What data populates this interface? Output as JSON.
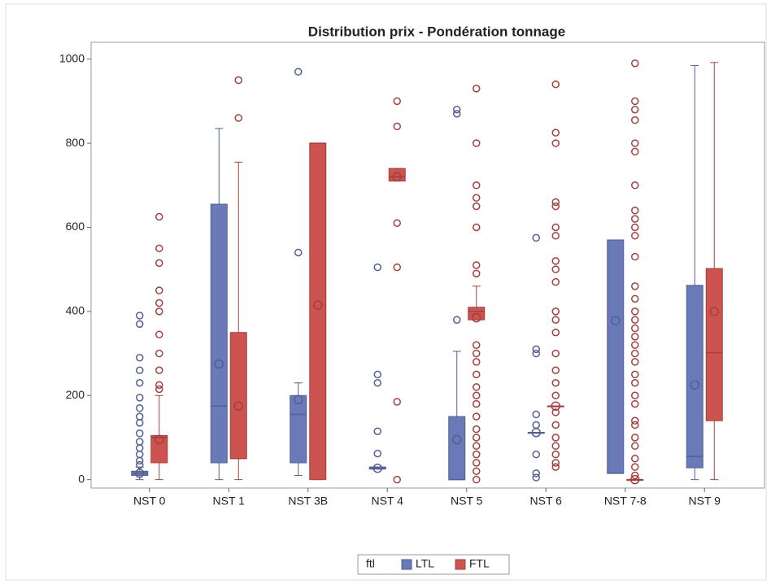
{
  "chart_data": {
    "type": "box",
    "title": "Distribution prix - Pondération tonnage",
    "categories": [
      "NST 0",
      "NST 1",
      "NST 3B",
      "NST 4",
      "NST 5",
      "NST 6",
      "NST 7-8",
      "NST 9"
    ],
    "ylim": [
      -20,
      1040
    ],
    "yticks": [
      0,
      200,
      400,
      600,
      800,
      1000
    ],
    "legend_title": "ftl",
    "legend_position": "bottom",
    "series": [
      {
        "name": "LTL",
        "color": "#6a7ab8",
        "stats": [
          {
            "min": 0,
            "q1": 10,
            "median": 15,
            "q3": 20,
            "max": 30,
            "mean": 15,
            "outliers": [
              35,
              45,
              60,
              75,
              90,
              110,
              135,
              150,
              170,
              195,
              230,
              260,
              290,
              370,
              390
            ]
          },
          {
            "min": 0,
            "q1": 40,
            "median": 175,
            "q3": 655,
            "max": 835,
            "mean": 275,
            "outliers": []
          },
          {
            "min": 10,
            "q1": 40,
            "median": 155,
            "q3": 200,
            "max": 230,
            "mean": 190,
            "outliers": [
              540,
              970
            ]
          },
          {
            "min": 25,
            "q1": 25,
            "median": 27,
            "q3": 30,
            "max": 30,
            "mean": 27,
            "outliers": [
              62,
              115,
              230,
              250,
              505
            ]
          },
          {
            "min": 0,
            "q1": 0,
            "median": 0,
            "q3": 150,
            "max": 305,
            "mean": 95,
            "outliers": [
              380,
              870,
              880
            ]
          },
          {
            "min": 112,
            "q1": 112,
            "median": 112,
            "q3": 112,
            "max": 112,
            "mean": 112,
            "outliers": [
              5,
              15,
              60,
              130,
              155,
              300,
              310,
              575
            ]
          },
          {
            "min": 15,
            "q1": 15,
            "median": 15,
            "q3": 570,
            "max": 570,
            "mean": 378,
            "outliers": []
          },
          {
            "min": 0,
            "q1": 28,
            "median": 55,
            "q3": 462,
            "max": 985,
            "mean": 225,
            "outliers": []
          }
        ]
      },
      {
        "name": "FTL",
        "color": "#cc5350",
        "stats": [
          {
            "min": 0,
            "q1": 40,
            "median": 100,
            "q3": 105,
            "max": 200,
            "mean": 95,
            "outliers": [
              215,
              225,
              260,
              300,
              345,
              400,
              420,
              450,
              515,
              550,
              625
            ]
          },
          {
            "min": 0,
            "q1": 50,
            "median": 50,
            "q3": 350,
            "max": 755,
            "mean": 175,
            "outliers": [
              860,
              950
            ]
          },
          {
            "min": 0,
            "q1": 0,
            "median": 800,
            "q3": 800,
            "max": 800,
            "mean": 415,
            "outliers": []
          },
          {
            "min": 710,
            "q1": 710,
            "median": 720,
            "q3": 740,
            "max": 740,
            "mean": 720,
            "outliers": [
              0,
              185,
              505,
              610,
              840,
              900
            ]
          },
          {
            "min": 380,
            "q1": 380,
            "median": 400,
            "q3": 410,
            "max": 460,
            "mean": 385,
            "outliers": [
              0,
              20,
              40,
              60,
              80,
              100,
              120,
              150,
              180,
              200,
              220,
              250,
              280,
              300,
              320,
              490,
              510,
              600,
              650,
              670,
              700,
              800,
              930
            ]
          },
          {
            "min": 175,
            "q1": 175,
            "median": 175,
            "q3": 175,
            "max": 175,
            "mean": 175,
            "outliers": [
              30,
              40,
              60,
              80,
              100,
              130,
              160,
              200,
              230,
              260,
              300,
              350,
              380,
              400,
              470,
              500,
              520,
              580,
              600,
              650,
              660,
              800,
              825,
              940
            ]
          },
          {
            "min": 0,
            "q1": 0,
            "median": 0,
            "q3": 0,
            "max": 0,
            "mean": 0,
            "outliers": [
              10,
              30,
              50,
              80,
              100,
              130,
              140,
              180,
              200,
              230,
              250,
              280,
              300,
              320,
              340,
              360,
              380,
              400,
              430,
              460,
              530,
              580,
              600,
              620,
              640,
              700,
              780,
              800,
              855,
              880,
              900,
              990
            ]
          },
          {
            "min": 0,
            "q1": 140,
            "median": 302,
            "q3": 502,
            "max": 992,
            "mean": 400,
            "outliers": []
          }
        ]
      }
    ]
  }
}
